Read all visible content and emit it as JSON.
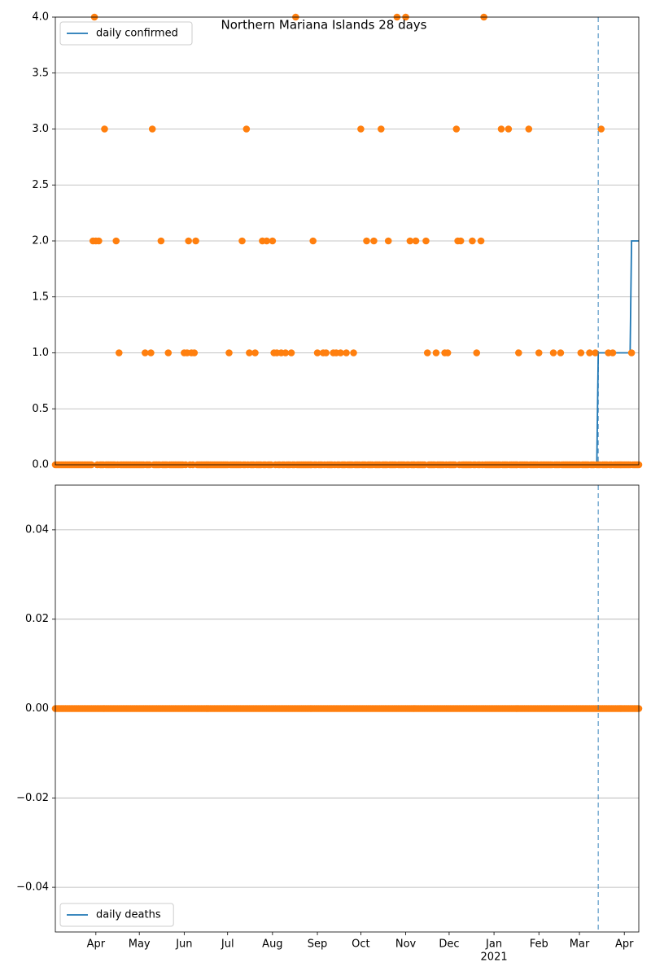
{
  "chart_data": [
    {
      "type": "line",
      "title": "Northern Mariana Islands 28 days",
      "xlim": [
        0,
        403
      ],
      "ylim": [
        0,
        4
      ],
      "yticks": [
        {
          "value": 0,
          "label": "0.0"
        },
        {
          "value": 0.5,
          "label": "0.5"
        },
        {
          "value": 1,
          "label": "1.0"
        },
        {
          "value": 1.5,
          "label": "1.5"
        },
        {
          "value": 2,
          "label": "2.0"
        },
        {
          "value": 2.5,
          "label": "2.5"
        },
        {
          "value": 3,
          "label": "3.0"
        },
        {
          "value": 3.5,
          "label": "3.5"
        },
        {
          "value": 4,
          "label": "4.0"
        }
      ],
      "grid": true,
      "legend": "upper left",
      "vline": 375,
      "series": [
        {
          "name": "daily confirmed",
          "color": "#1f77b4",
          "mark": "line",
          "x": [
            0,
            374,
            375,
            397,
            398,
            403
          ],
          "values": [
            0,
            0,
            1,
            1,
            2,
            2
          ]
        },
        {
          "color": "#ff7f0e",
          "mark": "points",
          "values": [
            0,
            0,
            0,
            0,
            0,
            0,
            0,
            0,
            0,
            0,
            0,
            0,
            0,
            0,
            0,
            0,
            0,
            0,
            0,
            0,
            0,
            0,
            0,
            0,
            0,
            0,
            2,
            4,
            2,
            0,
            2,
            0,
            0,
            0,
            3,
            0,
            0,
            0,
            0,
            0,
            0,
            0,
            2,
            0,
            1,
            0,
            0,
            0,
            0,
            0,
            0,
            0,
            0,
            0,
            0,
            0,
            0,
            0,
            0,
            0,
            0,
            0,
            1,
            0,
            0,
            0,
            1,
            3,
            0,
            0,
            0,
            0,
            0,
            2,
            0,
            0,
            0,
            0,
            1,
            0,
            0,
            0,
            0,
            0,
            0,
            0,
            0,
            0,
            0,
            1,
            0,
            1,
            2,
            0,
            1,
            0,
            1,
            2,
            0,
            0,
            0,
            0,
            0,
            0,
            0,
            0,
            0,
            0,
            0,
            0,
            0,
            0,
            0,
            0,
            0,
            0,
            0,
            0,
            0,
            0,
            1,
            0,
            0,
            0,
            0,
            0,
            0,
            0,
            0,
            2,
            0,
            0,
            3,
            0,
            1,
            0,
            0,
            0,
            1,
            0,
            0,
            0,
            0,
            2,
            0,
            0,
            2,
            0,
            0,
            0,
            2,
            1,
            0,
            1,
            0,
            0,
            1,
            0,
            0,
            1,
            0,
            0,
            0,
            1,
            0,
            0,
            4,
            0,
            0,
            0,
            0,
            0,
            0,
            0,
            0,
            0,
            0,
            0,
            2,
            0,
            0,
            1,
            0,
            0,
            0,
            1,
            0,
            1,
            0,
            0,
            0,
            0,
            1,
            0,
            1,
            0,
            0,
            1,
            0,
            0,
            0,
            1,
            0,
            0,
            0,
            0,
            1,
            0,
            0,
            0,
            0,
            3,
            0,
            0,
            0,
            2,
            0,
            0,
            0,
            0,
            2,
            0,
            0,
            0,
            0,
            3,
            0,
            0,
            0,
            0,
            2,
            0,
            0,
            0,
            0,
            0,
            4,
            0,
            0,
            0,
            0,
            0,
            4,
            0,
            0,
            2,
            0,
            0,
            0,
            2,
            0,
            0,
            0,
            0,
            0,
            0,
            2,
            1,
            0,
            0,
            0,
            0,
            0,
            1,
            0,
            0,
            0,
            0,
            0,
            1,
            0,
            1,
            0,
            0,
            0,
            0,
            0,
            3,
            2,
            0,
            2,
            0,
            0,
            0,
            0,
            0,
            0,
            0,
            2,
            0,
            0,
            1,
            0,
            0,
            2,
            0,
            4,
            0,
            0,
            0,
            0,
            0,
            0,
            0,
            0,
            0,
            0,
            0,
            3,
            0,
            0,
            0,
            0,
            3,
            0,
            0,
            0,
            0,
            0,
            0,
            1,
            0,
            0,
            0,
            0,
            0,
            0,
            3,
            0,
            0,
            0,
            0,
            0,
            0,
            1,
            0,
            0,
            0,
            0,
            0,
            0,
            0,
            0,
            0,
            1,
            0,
            0,
            0,
            0,
            1,
            0,
            0,
            0,
            0,
            0,
            0,
            0,
            0,
            0,
            0,
            0,
            0,
            0,
            1,
            0,
            0,
            0,
            0,
            0,
            1,
            0,
            0,
            0,
            1,
            0,
            0,
            0,
            3,
            0,
            0,
            0,
            0,
            1,
            0,
            0,
            1,
            0,
            0,
            0,
            0,
            0,
            0,
            0,
            0,
            0,
            0,
            0,
            0,
            1,
            0,
            0,
            0,
            0,
            0
          ]
        }
      ]
    },
    {
      "type": "line",
      "xlim": [
        0,
        403
      ],
      "ylim": [
        -0.05,
        0.05
      ],
      "xticks": [
        {
          "value": 28,
          "label": "Apr"
        },
        {
          "value": 58,
          "label": "May"
        },
        {
          "value": 89,
          "label": "Jun"
        },
        {
          "value": 119,
          "label": "Jul"
        },
        {
          "value": 150,
          "label": "Aug"
        },
        {
          "value": 181,
          "label": "Sep"
        },
        {
          "value": 211,
          "label": "Oct"
        },
        {
          "value": 242,
          "label": "Nov"
        },
        {
          "value": 272,
          "label": "Dec"
        },
        {
          "value": 303,
          "label": "Jan"
        },
        {
          "value": 334,
          "label": "Feb"
        },
        {
          "value": 362,
          "label": "Mar"
        },
        {
          "value": 393,
          "label": "Apr"
        }
      ],
      "xtick_sublabels": [
        {
          "value": 303,
          "label": "2021"
        }
      ],
      "yticks": [
        {
          "value": -0.04,
          "label": "−0.04"
        },
        {
          "value": -0.02,
          "label": "−0.02"
        },
        {
          "value": 0,
          "label": "0.00"
        },
        {
          "value": 0.02,
          "label": "0.02"
        },
        {
          "value": 0.04,
          "label": "0.04"
        }
      ],
      "grid": true,
      "legend": "lower left",
      "vline": 375,
      "series": [
        {
          "name": "daily deaths",
          "color": "#1f77b4",
          "mark": "line",
          "x": [
            0,
            403
          ],
          "values": [
            0,
            0
          ]
        },
        {
          "color": "#ff7f0e",
          "mark": "points",
          "values": [
            0,
            0,
            0,
            0,
            0,
            0,
            0,
            0,
            0,
            0,
            0,
            0,
            0,
            0,
            0,
            0,
            0,
            0,
            0,
            0,
            0,
            0,
            0,
            0,
            0,
            0,
            0,
            0,
            0,
            0,
            0,
            0,
            0,
            0,
            0,
            0,
            0,
            0,
            0,
            0,
            0,
            0,
            0,
            0,
            0,
            0,
            0,
            0,
            0,
            0,
            0,
            0,
            0,
            0,
            0,
            0,
            0,
            0,
            0,
            0,
            0,
            0,
            0,
            0,
            0,
            0,
            0,
            0,
            0,
            0,
            0,
            0,
            0,
            0,
            0,
            0,
            0,
            0,
            0,
            0,
            0,
            0,
            0,
            0,
            0,
            0,
            0,
            0,
            0,
            0,
            0,
            0,
            0,
            0,
            0,
            0,
            0,
            0,
            0,
            0,
            0,
            0,
            0,
            0,
            0,
            0,
            0,
            0,
            0,
            0,
            0,
            0,
            0,
            0,
            0,
            0,
            0,
            0,
            0,
            0,
            0,
            0,
            0,
            0,
            0,
            0,
            0,
            0,
            0,
            0,
            0,
            0,
            0,
            0,
            0,
            0,
            0,
            0,
            0,
            0,
            0,
            0,
            0,
            0,
            0,
            0,
            0,
            0,
            0,
            0,
            0,
            0,
            0,
            0,
            0,
            0,
            0,
            0,
            0,
            0,
            0,
            0,
            0,
            0,
            0,
            0,
            0,
            0,
            0,
            0,
            0,
            0,
            0,
            0,
            0,
            0,
            0,
            0,
            0,
            0,
            0,
            0,
            0,
            0,
            0,
            0,
            0,
            0,
            0,
            0,
            0,
            0,
            0,
            0,
            0,
            0,
            0,
            0,
            0,
            0,
            0,
            0,
            0,
            0,
            0,
            0,
            0,
            0,
            0,
            0,
            0,
            0,
            0,
            0,
            0,
            0,
            0,
            0,
            0,
            0,
            0,
            0,
            0,
            0,
            0,
            0,
            0,
            0,
            0,
            0,
            0,
            0,
            0,
            0,
            0,
            0,
            0,
            0,
            0,
            0,
            0,
            0,
            0,
            0,
            0,
            0,
            0,
            0,
            0,
            0,
            0,
            0,
            0,
            0,
            0,
            0,
            0,
            0,
            0,
            0,
            0,
            0,
            0,
            0,
            0,
            0,
            0,
            0,
            0,
            0,
            0,
            0,
            0,
            0,
            0,
            0,
            0,
            0,
            0,
            0,
            0,
            0,
            0,
            0,
            0,
            0,
            0,
            0,
            0,
            0,
            0,
            0,
            0,
            0,
            0,
            0,
            0,
            0,
            0,
            0,
            0,
            0,
            0,
            0,
            0,
            0,
            0,
            0,
            0,
            0,
            0,
            0,
            0,
            0,
            0,
            0,
            0,
            0,
            0,
            0,
            0,
            0,
            0,
            0,
            0,
            0,
            0,
            0,
            0,
            0,
            0,
            0,
            0,
            0,
            0,
            0,
            0,
            0,
            0,
            0,
            0,
            0,
            0,
            0,
            0,
            0,
            0,
            0,
            0,
            0,
            0,
            0,
            0,
            0,
            0,
            0,
            0,
            0,
            0,
            0,
            0,
            0,
            0,
            0,
            0,
            0,
            0,
            0,
            0,
            0,
            0,
            0,
            0,
            0,
            0,
            0,
            0,
            0,
            0,
            0,
            0,
            0,
            0,
            0,
            0,
            0,
            0,
            0,
            0,
            0,
            0,
            0,
            0,
            0,
            0,
            0,
            0,
            0,
            0,
            0,
            0,
            0,
            0,
            0
          ]
        }
      ]
    }
  ]
}
